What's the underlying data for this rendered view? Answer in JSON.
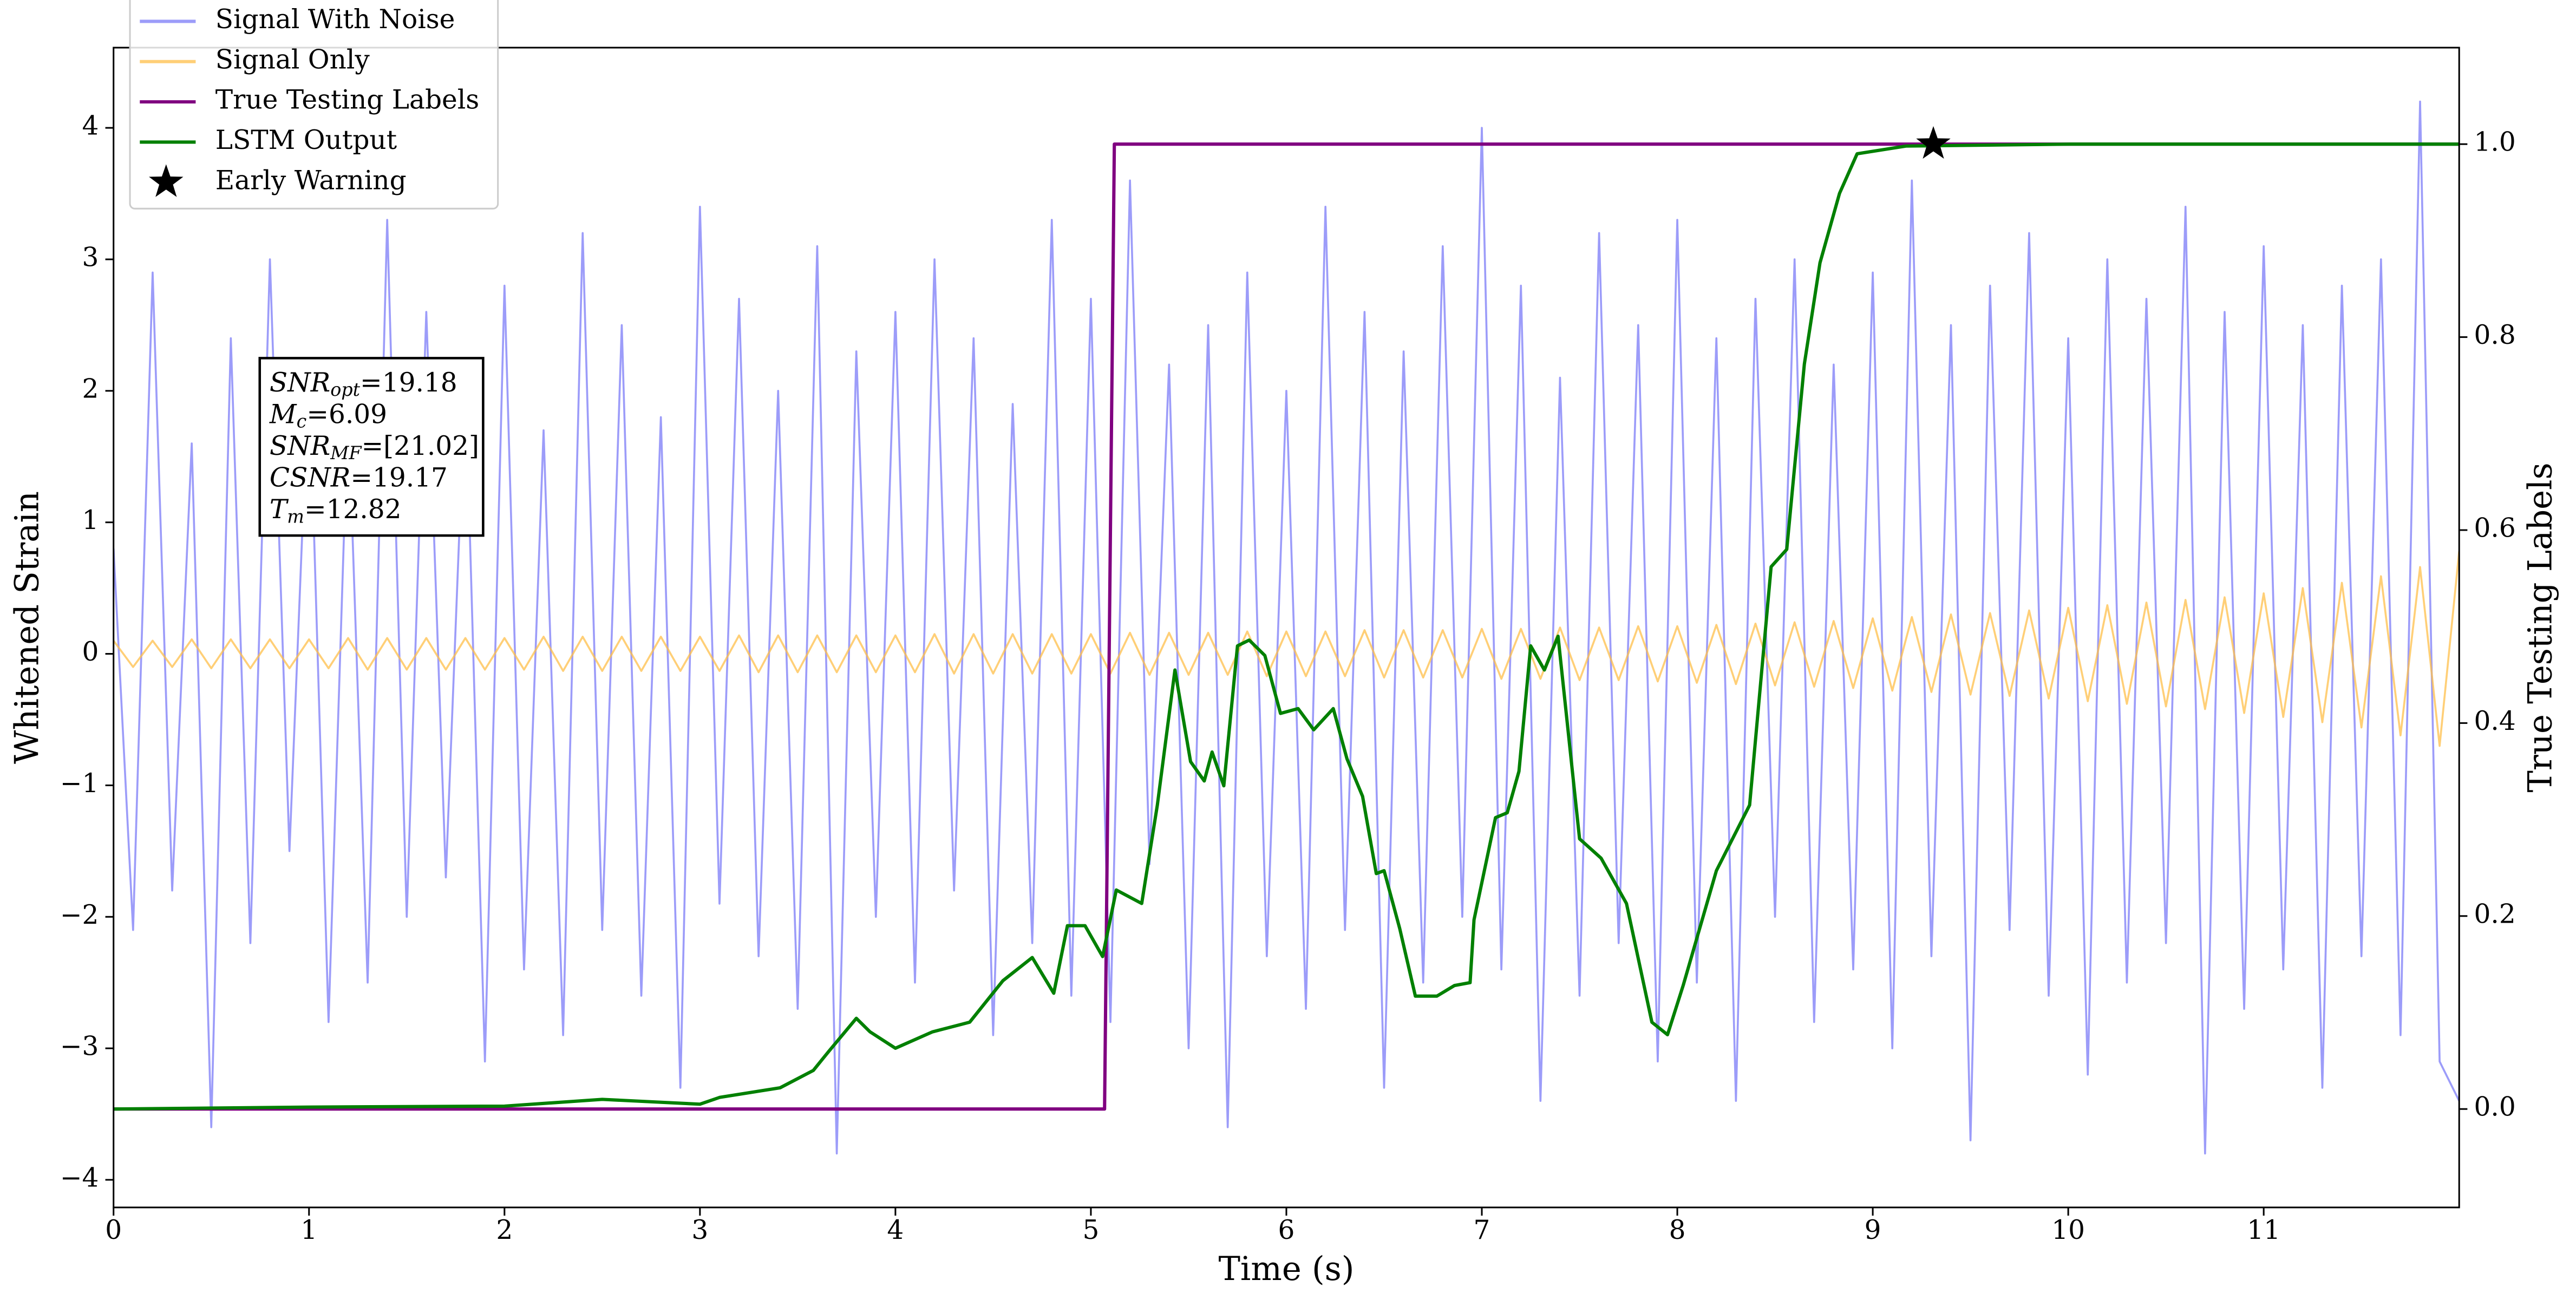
{
  "chart_data": {
    "type": "line",
    "xlabel": "Time (s)",
    "ylabel": "Whitened Strain",
    "y2label": "True Testing Labels",
    "xlim": [
      0,
      12
    ],
    "ylim": [
      -4.21,
      4.61
    ],
    "y2lim": [
      -0.102,
      1.1
    ],
    "xticks": [
      0,
      1,
      2,
      3,
      4,
      5,
      6,
      7,
      8,
      9,
      10,
      11
    ],
    "yticks": [
      {
        "value": -4,
        "label": "−4"
      },
      {
        "value": -3,
        "label": "−3"
      },
      {
        "value": -2,
        "label": "−2"
      },
      {
        "value": -1,
        "label": "−1"
      },
      0,
      1,
      2,
      3,
      4
    ],
    "y2ticks": [
      {
        "value": 0,
        "label": "0.0"
      },
      0.2,
      0.4,
      0.6,
      0.8,
      {
        "value": 1,
        "label": "1.0"
      }
    ],
    "legend": "upper left",
    "x": [
      0,
      0.1,
      0.2,
      0.3,
      0.4,
      0.5,
      0.6,
      0.7,
      0.8,
      0.9,
      1,
      1.1,
      1.2,
      1.3,
      1.4,
      1.5,
      1.6,
      1.7,
      1.8,
      1.9,
      2,
      2.1,
      2.2,
      2.3,
      2.4,
      2.5,
      2.6,
      2.7,
      2.8,
      2.9,
      3,
      3.1,
      3.2,
      3.3,
      3.4,
      3.5,
      3.6,
      3.7,
      3.8,
      3.9,
      4,
      4.1,
      4.2,
      4.3,
      4.4,
      4.5,
      4.6,
      4.7,
      4.8,
      4.9,
      5,
      5.1,
      5.2,
      5.3,
      5.4,
      5.5,
      5.6,
      5.7,
      5.8,
      5.9,
      6,
      6.1,
      6.2,
      6.3,
      6.4,
      6.5,
      6.6,
      6.7,
      6.8,
      6.9,
      7,
      7.1,
      7.2,
      7.3,
      7.4,
      7.5,
      7.6,
      7.7,
      7.8,
      7.9,
      8,
      8.1,
      8.2,
      8.3,
      8.4,
      8.5,
      8.6,
      8.7,
      8.8,
      8.9,
      9,
      9.1,
      9.2,
      9.3,
      9.4,
      9.5,
      9.6,
      9.7,
      9.8,
      9.9,
      10,
      10.1,
      10.2,
      10.3,
      10.4,
      10.5,
      10.6,
      10.7,
      10.8,
      10.9,
      11,
      11.1,
      11.2,
      11.3,
      11.4,
      11.5,
      11.6,
      11.7,
      11.8,
      11.9,
      12
    ],
    "series": [
      {
        "name": "Signal With Noise",
        "color": "#7b7bf7",
        "values": [
          0.8,
          -2.1,
          2.9,
          -1.8,
          1.6,
          -3.6,
          2.4,
          -2.2,
          3.0,
          -1.5,
          2.2,
          -2.8,
          1.9,
          -2.5,
          3.3,
          -2.0,
          2.6,
          -1.7,
          2.1,
          -3.1,
          2.8,
          -2.4,
          1.7,
          -2.9,
          3.2,
          -2.1,
          2.5,
          -2.6,
          1.8,
          -3.3,
          3.4,
          -1.9,
          2.7,
          -2.3,
          2.0,
          -2.7,
          3.1,
          -3.8,
          2.3,
          -2.0,
          2.6,
          -2.5,
          3.0,
          -1.8,
          2.4,
          -2.9,
          1.9,
          -2.2,
          3.3,
          -2.6,
          2.7,
          -2.8,
          3.6,
          -1.6,
          2.2,
          -3.0,
          2.5,
          -3.6,
          2.9,
          -2.3,
          2.0,
          -2.7,
          3.4,
          -2.1,
          2.6,
          -3.3,
          2.3,
          -2.5,
          3.1,
          -2.0,
          4.0,
          -2.4,
          2.8,
          -3.4,
          2.1,
          -2.6,
          3.2,
          -2.2,
          2.5,
          -3.1,
          3.3,
          -2.5,
          2.4,
          -3.4,
          2.7,
          -2.0,
          3.0,
          -2.8,
          2.2,
          -2.4,
          2.9,
          -3.0,
          3.6,
          -2.3,
          2.5,
          -3.7,
          2.8,
          -2.1,
          3.2,
          -2.6,
          2.4,
          -3.2,
          3.0,
          -2.5,
          2.7,
          -2.2,
          3.4,
          -3.8,
          2.6,
          -2.7,
          3.1,
          -2.4,
          2.5,
          -3.3,
          2.8,
          -2.3,
          3.0,
          -2.9,
          4.2,
          -3.1,
          -3.4
        ]
      },
      {
        "name": "Signal Only",
        "color": "#ffbf4a",
        "values": [
          0.1,
          -0.1,
          0.1,
          -0.1,
          0.11,
          -0.11,
          0.11,
          -0.11,
          0.11,
          -0.11,
          0.11,
          -0.11,
          0.12,
          -0.12,
          0.12,
          -0.12,
          0.12,
          -0.12,
          0.12,
          -0.12,
          0.12,
          -0.12,
          0.13,
          -0.13,
          0.13,
          -0.13,
          0.13,
          -0.13,
          0.13,
          -0.13,
          0.13,
          -0.13,
          0.14,
          -0.14,
          0.14,
          -0.14,
          0.14,
          -0.14,
          0.14,
          -0.14,
          0.14,
          -0.14,
          0.15,
          -0.15,
          0.15,
          -0.15,
          0.15,
          -0.15,
          0.15,
          -0.15,
          0.15,
          -0.15,
          0.16,
          -0.16,
          0.16,
          -0.16,
          0.16,
          -0.16,
          0.17,
          -0.17,
          0.17,
          -0.17,
          0.17,
          -0.17,
          0.18,
          -0.18,
          0.18,
          -0.18,
          0.18,
          -0.18,
          0.19,
          -0.19,
          0.19,
          -0.19,
          0.2,
          -0.2,
          0.2,
          -0.2,
          0.21,
          -0.21,
          0.21,
          -0.22,
          0.22,
          -0.23,
          0.23,
          -0.24,
          0.24,
          -0.25,
          0.25,
          -0.26,
          0.27,
          -0.28,
          0.28,
          -0.29,
          0.3,
          -0.31,
          0.31,
          -0.32,
          0.33,
          -0.34,
          0.35,
          -0.36,
          0.37,
          -0.38,
          0.39,
          -0.4,
          0.41,
          -0.42,
          0.43,
          -0.45,
          0.46,
          -0.48,
          0.5,
          -0.52,
          0.54,
          -0.56,
          0.59,
          -0.62,
          0.66,
          -0.7,
          0.78
        ]
      },
      {
        "name": "True Testing Labels",
        "color": "#800080",
        "axis": "y2",
        "x": [
          0,
          5.07,
          5.12,
          12
        ],
        "values": [
          0,
          0,
          1,
          1
        ]
      },
      {
        "name": "LSTM Output",
        "color": "#008000",
        "axis": "y2",
        "x": [
          0,
          1.0,
          2.0,
          2.5,
          3.0,
          3.1,
          3.41,
          3.58,
          3.66,
          3.8,
          3.87,
          4.0,
          4.19,
          4.38,
          4.55,
          4.7,
          4.81,
          4.88,
          4.97,
          5.06,
          5.13,
          5.26,
          5.34,
          5.43,
          5.51,
          5.58,
          5.62,
          5.68,
          5.75,
          5.81,
          5.89,
          5.97,
          6.06,
          6.14,
          6.24,
          6.31,
          6.39,
          6.46,
          6.5,
          6.58,
          6.66,
          6.77,
          6.86,
          6.94,
          6.96,
          7.07,
          7.13,
          7.19,
          7.25,
          7.32,
          7.39,
          7.5,
          7.61,
          7.74,
          7.87,
          7.95,
          8.03,
          8.2,
          8.37,
          8.48,
          8.56,
          8.65,
          8.73,
          8.83,
          8.92,
          9.17,
          10.01,
          12
        ],
        "values": [
          0,
          0.002,
          0.003,
          0.01,
          0.005,
          0.012,
          0.022,
          0.04,
          0.06,
          0.094,
          0.08,
          0.063,
          0.08,
          0.09,
          0.133,
          0.157,
          0.12,
          0.19,
          0.19,
          0.158,
          0.227,
          0.213,
          0.315,
          0.455,
          0.36,
          0.34,
          0.37,
          0.335,
          0.48,
          0.486,
          0.47,
          0.41,
          0.415,
          0.393,
          0.415,
          0.363,
          0.324,
          0.244,
          0.247,
          0.187,
          0.117,
          0.117,
          0.128,
          0.131,
          0.196,
          0.302,
          0.307,
          0.35,
          0.48,
          0.455,
          0.49,
          0.28,
          0.26,
          0.213,
          0.09,
          0.077,
          0.128,
          0.247,
          0.315,
          0.562,
          0.58,
          0.772,
          0.877,
          0.949,
          0.99,
          0.998,
          1.0,
          1.0
        ]
      },
      {
        "name": "Early Warning",
        "color": "#000000",
        "axis": "y2",
        "marker": "star",
        "x": [
          9.31
        ],
        "values": [
          1.0
        ]
      }
    ],
    "annotation": [
      {
        "symbol": "SNR",
        "sub": "opt",
        "text": "=19.18"
      },
      {
        "symbol": "M",
        "sub": "c",
        "text": "=6.09"
      },
      {
        "symbol": "SNR",
        "sub": "MF",
        "text": "=[21.02]"
      },
      {
        "symbol": "CSNR",
        "text": "=19.17"
      },
      {
        "symbol": "T",
        "sub": "m",
        "text": "=12.82"
      }
    ]
  }
}
